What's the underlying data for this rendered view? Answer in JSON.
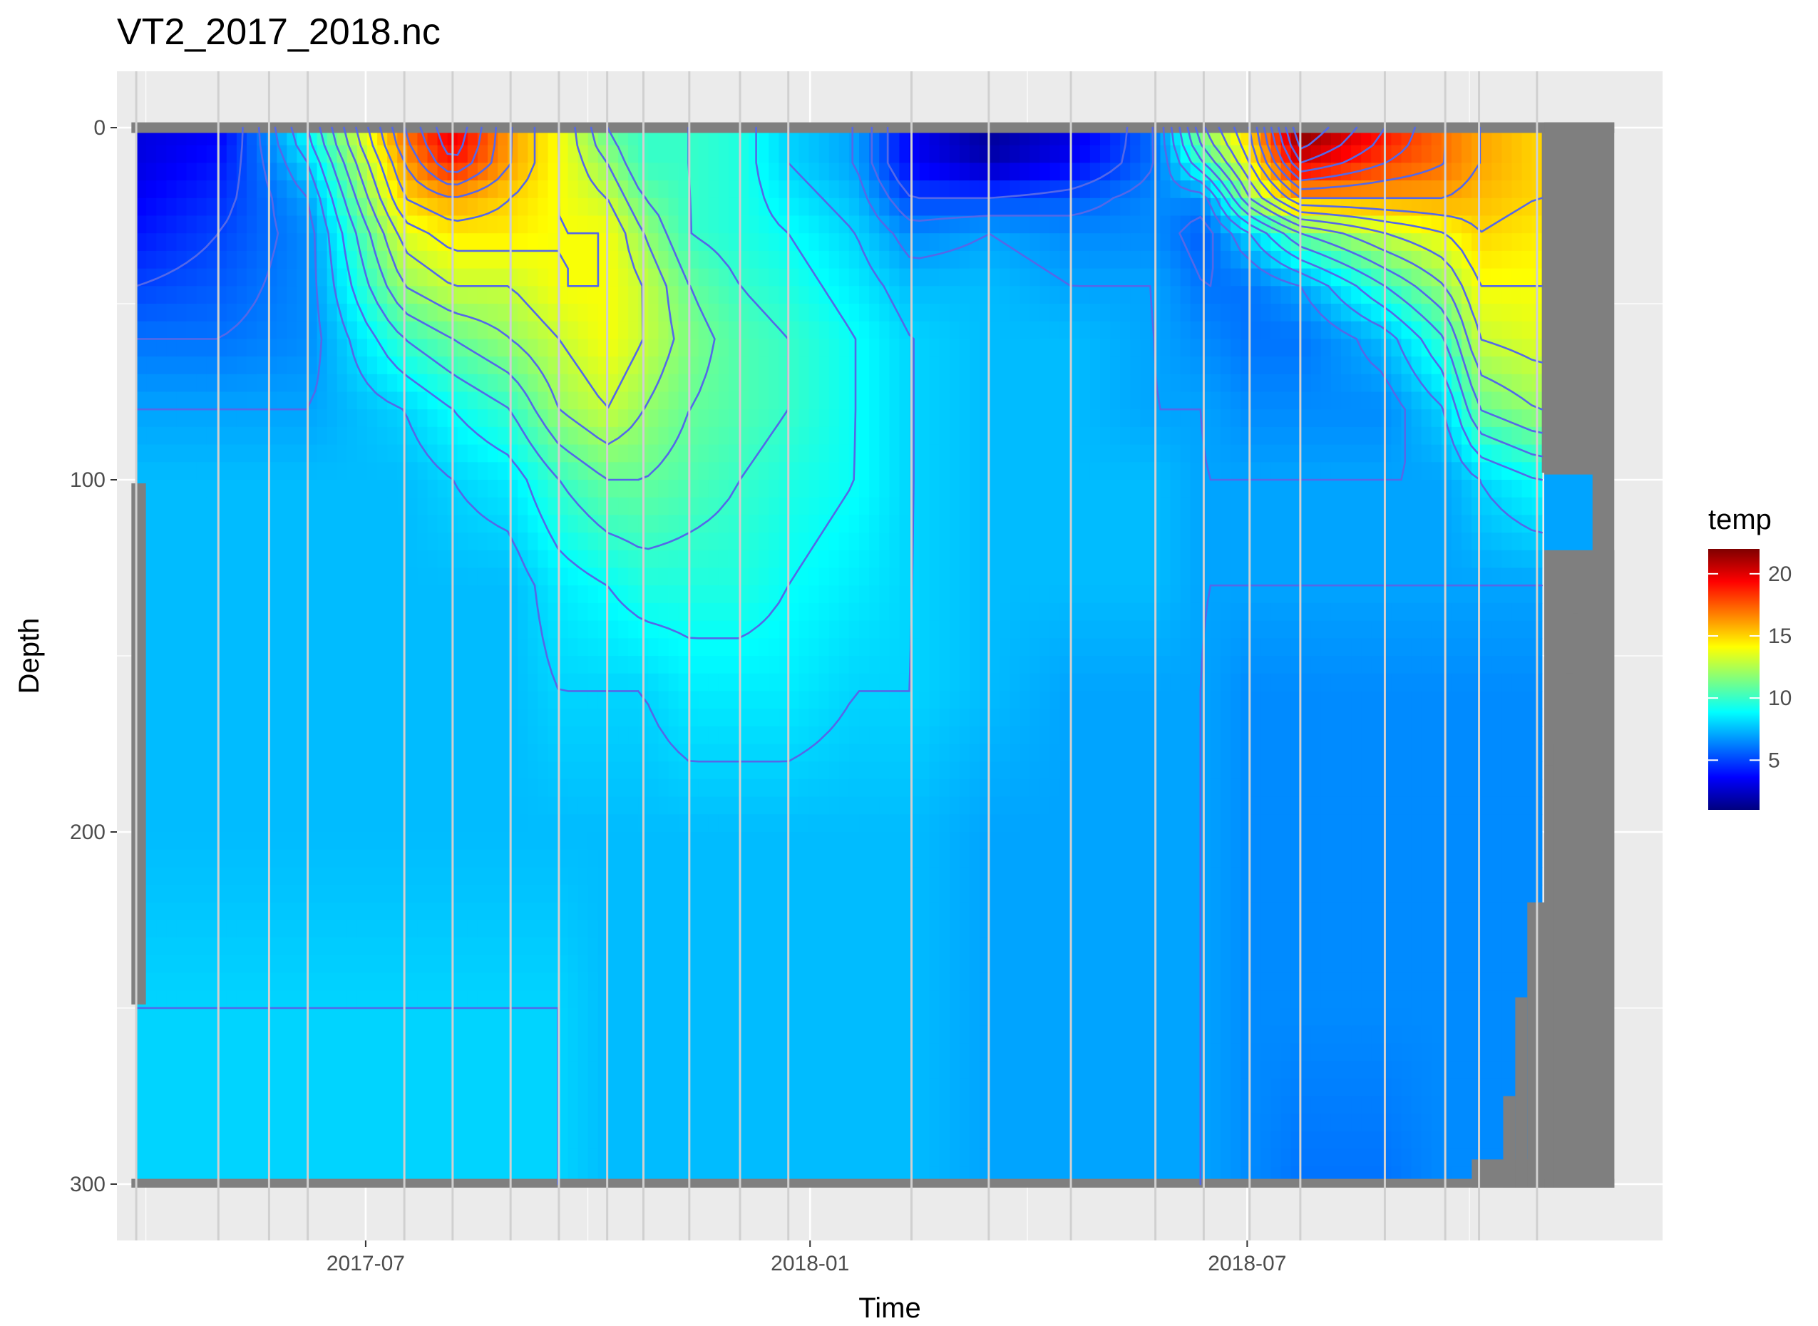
{
  "chart_data": {
    "type": "heatmap",
    "title": "VT2_2017_2018.nc",
    "xlabel": "Time",
    "ylabel": "Depth",
    "x_ticks": [
      "2017-07",
      "2018-01",
      "2018-07"
    ],
    "x_range": [
      "2017-03-20",
      "2018-12-20"
    ],
    "y_ticks": [
      0,
      100,
      200,
      300
    ],
    "ylim": [
      316,
      -16
    ],
    "y_reversed": true,
    "grid": true,
    "legend": {
      "title": "temp",
      "position": "right",
      "ticks": [
        20,
        15,
        10,
        5
      ],
      "range": [
        1,
        22
      ],
      "colors": [
        "#00007F",
        "#0000FF",
        "#007FFF",
        "#00FFFF",
        "#7FFF7F",
        "#FFFF00",
        "#FF7F00",
        "#FF0000",
        "#7F0000"
      ]
    },
    "colors": {
      "panel_bg": "#EBEBEB",
      "grid_major": "#FFFFFF",
      "missing": "#7F7F7F",
      "contour": "#5468E8",
      "sample_lines": "#D0D0D0"
    },
    "sample_dates": [
      "2017-03-28",
      "2017-05-01",
      "2017-05-22",
      "2017-06-07",
      "2017-07-17",
      "2017-08-06",
      "2017-08-30",
      "2017-09-19",
      "2017-10-09",
      "2017-10-24",
      "2017-11-12",
      "2017-12-03",
      "2017-12-23",
      "2018-02-12",
      "2018-03-16",
      "2018-04-19",
      "2018-05-24",
      "2018-06-13",
      "2018-07-02",
      "2018-07-23",
      "2018-08-27",
      "2018-09-21",
      "2018-10-05",
      "2018-10-29"
    ],
    "temperature_profile": {
      "dates": [
        "2017-03-28",
        "2017-05-01",
        "2017-06-07",
        "2017-07-17",
        "2017-08-06",
        "2017-08-30",
        "2017-09-19",
        "2017-10-09",
        "2017-10-24",
        "2017-11-12",
        "2017-12-03",
        "2017-12-23",
        "2018-01-20",
        "2018-02-12",
        "2018-03-16",
        "2018-04-19",
        "2018-05-24",
        "2018-06-13",
        "2018-07-02",
        "2018-07-23",
        "2018-08-27",
        "2018-09-21",
        "2018-10-05",
        "2018-10-29"
      ],
      "depths": [
        2,
        10,
        20,
        30,
        45,
        60,
        80,
        100,
        130,
        160,
        200,
        250,
        298
      ],
      "values": [
        [
          3,
          3,
          3.5,
          4,
          5,
          6,
          7,
          7.5,
          7.5,
          7.5,
          7.5,
          8,
          8
        ],
        [
          3.5,
          4,
          4.5,
          5,
          5.5,
          6,
          7,
          7.5,
          7.5,
          7.5,
          7.5,
          8,
          8
        ],
        [
          9,
          8,
          7,
          6.5,
          6.5,
          6.5,
          7,
          7.5,
          7.5,
          7.5,
          7.5,
          8,
          8
        ],
        [
          17,
          16,
          15,
          13.5,
          12,
          10,
          8,
          7.5,
          7.5,
          7.5,
          7.5,
          8,
          8
        ],
        [
          20,
          19,
          16,
          14.5,
          13,
          11,
          9,
          8,
          7.5,
          7.5,
          7.5,
          8,
          8
        ],
        [
          16,
          16,
          15,
          14.5,
          13,
          12,
          10,
          8.5,
          7.5,
          7.5,
          7.5,
          8,
          8
        ],
        [
          14,
          14,
          14,
          14,
          14,
          13,
          12,
          10,
          8.5,
          8,
          7.5,
          8,
          8
        ],
        [
          11,
          12,
          13,
          14,
          14,
          14,
          13,
          11,
          9,
          8,
          7.5,
          7.5,
          7.5
        ],
        [
          10,
          10,
          11,
          12,
          13,
          13,
          12,
          11,
          9.5,
          8,
          7.5,
          7.5,
          7.5
        ],
        [
          10,
          10,
          10,
          10,
          11,
          11.5,
          11,
          10.5,
          9.5,
          8.5,
          7.5,
          7.5,
          7.5
        ],
        [
          9.5,
          9.5,
          9.5,
          9.5,
          10,
          10.5,
          10.5,
          10,
          9.5,
          8.5,
          7.5,
          7.5,
          7.5
        ],
        [
          8,
          8,
          8.5,
          9,
          9.5,
          10,
          10,
          9.5,
          9,
          8.5,
          7.5,
          7.5,
          7.5
        ],
        [
          7,
          7,
          7.5,
          8,
          8.5,
          9,
          9,
          9,
          8.5,
          8,
          7.5,
          7.5,
          7.5
        ],
        [
          3.5,
          3.5,
          5,
          6.5,
          7.5,
          8,
          8,
          8,
          8,
          8,
          7.5,
          7.5,
          7.5
        ],
        [
          1.5,
          2,
          5,
          7,
          7.5,
          7.5,
          7.5,
          7.5,
          7.5,
          7.5,
          7,
          7,
          7
        ],
        [
          3,
          3.5,
          5.5,
          6.5,
          7,
          7.5,
          7.5,
          7.5,
          7.5,
          7,
          7,
          7,
          7
        ],
        [
          6,
          6,
          6.5,
          6.5,
          7,
          7,
          7,
          7.5,
          7.5,
          7,
          7,
          7,
          7
        ],
        [
          12,
          10,
          6.5,
          5.5,
          6,
          6.5,
          7,
          7,
          7,
          7,
          7,
          7,
          7
        ],
        [
          15,
          14,
          12,
          8,
          6,
          6,
          6.5,
          7,
          7,
          6.5,
          6.5,
          6.5,
          6.5
        ],
        [
          22,
          20,
          16,
          11,
          7,
          6,
          6.5,
          7,
          7,
          6.5,
          6.5,
          6.5,
          6
        ],
        [
          19,
          18,
          16,
          13,
          10,
          7.5,
          6.5,
          7,
          7,
          6.5,
          6.5,
          6.5,
          6
        ],
        [
          17,
          17,
          16,
          14,
          12,
          10,
          8,
          7,
          7,
          6.5,
          6.5,
          6.5,
          6.5
        ],
        [
          16,
          16,
          15.5,
          15,
          14,
          13,
          11,
          8,
          7,
          6.5,
          6.5,
          6.5,
          6.5
        ],
        [
          15,
          15,
          15,
          14.5,
          14,
          13.5,
          12,
          9,
          7,
          6.5,
          6.5,
          6.5,
          6.5
        ]
      ]
    }
  }
}
